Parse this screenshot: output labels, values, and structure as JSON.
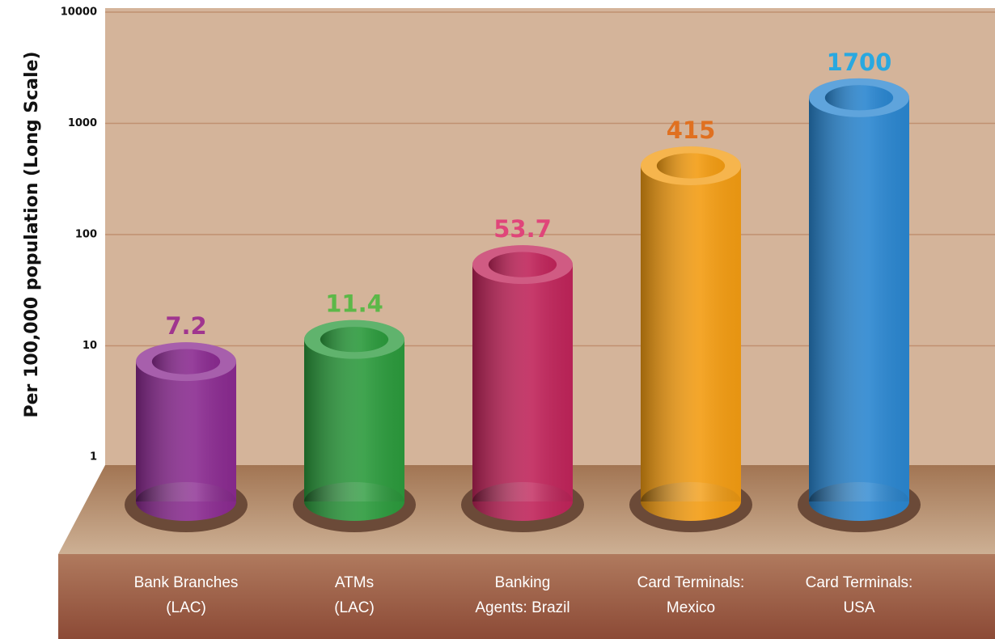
{
  "chart_data": {
    "type": "bar",
    "y_label": "Per 100,000 population (Long Scale)",
    "categories": [
      [
        "Bank Branches",
        "(LAC)"
      ],
      [
        "ATMs",
        "(LAC)"
      ],
      [
        "Banking",
        "Agents: Brazil"
      ],
      [
        "Card Terminals:",
        "Mexico"
      ],
      [
        "Card Terminals:",
        "USA"
      ]
    ],
    "values": [
      7.2,
      11.4,
      53.7,
      415,
      1700
    ],
    "colors": [
      "#8a2a90",
      "#2b9a3c",
      "#c0245a",
      "#f39c12",
      "#2a86d0"
    ],
    "label_colors": [
      "#a0358f",
      "#5cb848",
      "#e0457a",
      "#e07020",
      "#29a8e0"
    ],
    "ylim": [
      1,
      10000
    ],
    "yticks": [
      1,
      10,
      100,
      1000,
      10000
    ],
    "log_scale": true,
    "grid": true
  }
}
